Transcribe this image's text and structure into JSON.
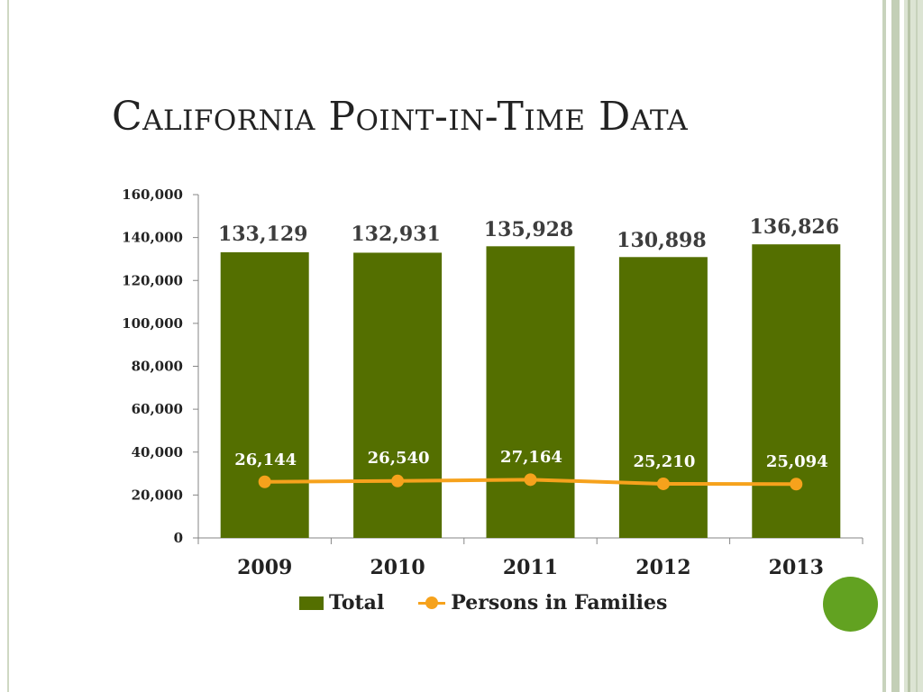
{
  "slide": {
    "title": "California Point-in-Time Data"
  },
  "colors": {
    "bar": "#546f00",
    "line": "#f6a21c",
    "accent_dot": "#62a221"
  },
  "chart_data": {
    "type": "bar",
    "categories": [
      "2009",
      "2010",
      "2011",
      "2012",
      "2013"
    ],
    "series": [
      {
        "name": "Total",
        "type": "bar",
        "values": [
          133129,
          132931,
          135928,
          130898,
          136826
        ],
        "labels": [
          "133,129",
          "132,931",
          "135,928",
          "130,898",
          "136,826"
        ]
      },
      {
        "name": "Persons in Families",
        "type": "line",
        "values": [
          26144,
          26540,
          27164,
          25210,
          25094
        ],
        "labels": [
          "26,144",
          "26,540",
          "27,164",
          "25,210",
          "25,094"
        ]
      }
    ],
    "ylim": [
      0,
      160000
    ],
    "yticks": [
      0,
      20000,
      40000,
      60000,
      80000,
      100000,
      120000,
      140000,
      160000
    ],
    "ytick_labels": [
      "0",
      "20,000",
      "40,000",
      "60,000",
      "80,000",
      "100,000",
      "120,000",
      "140,000",
      "160,000"
    ],
    "legend_position": "bottom",
    "grid": false,
    "xlabel": "",
    "ylabel": ""
  }
}
